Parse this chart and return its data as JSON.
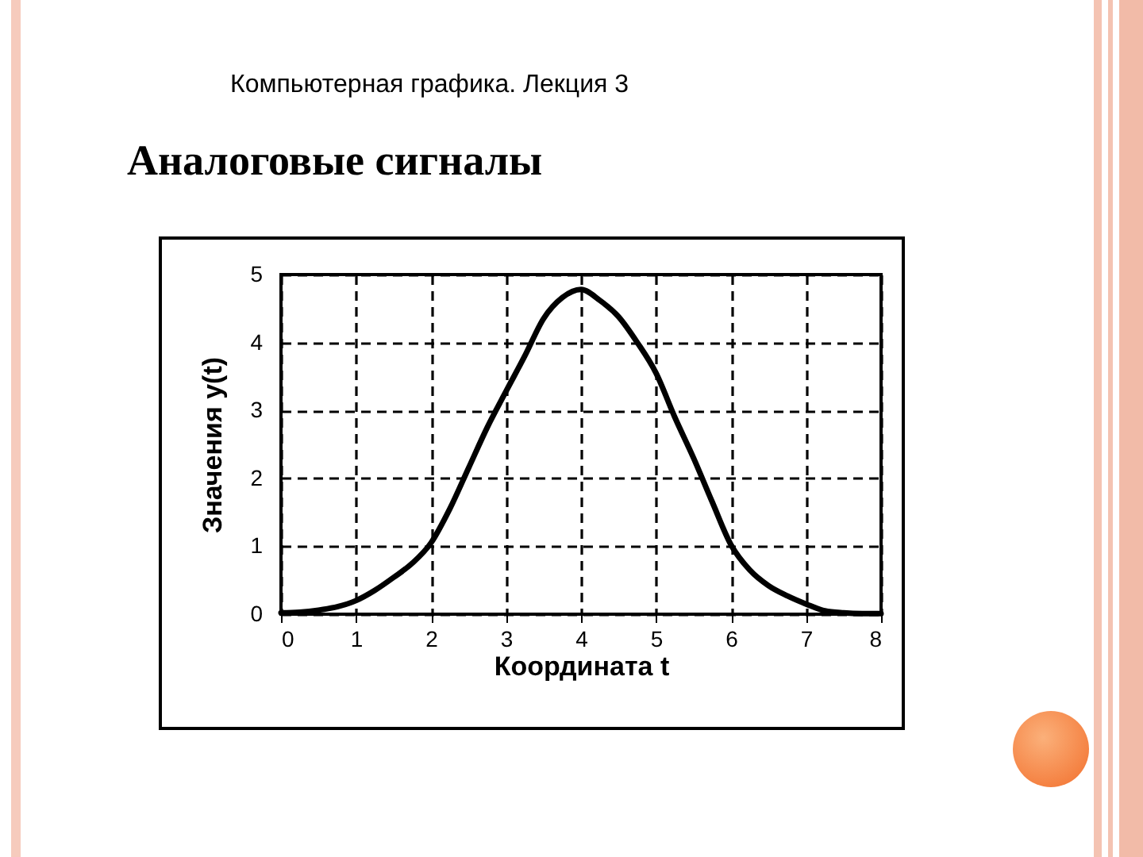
{
  "chart_data": {
    "type": "line",
    "title": "Аналоговые сигналы",
    "subtitle": "Компьютерная графика. Лекция 3",
    "xlabel": "Координата  t",
    "ylabel": "Значения  y(t)",
    "x": [
      0,
      0.25,
      0.5,
      0.75,
      1,
      1.25,
      1.5,
      1.75,
      2,
      2.25,
      2.5,
      2.75,
      3,
      3.25,
      3.5,
      3.75,
      4,
      4.25,
      4.5,
      4.75,
      5,
      5.25,
      5.5,
      5.75,
      6,
      6.25,
      6.5,
      6.75,
      7,
      7.25,
      7.5,
      7.75,
      8
    ],
    "series": [
      {
        "color": "#000000",
        "values": [
          0.02,
          0.03,
          0.06,
          0.11,
          0.2,
          0.35,
          0.54,
          0.75,
          1.05,
          1.55,
          2.15,
          2.75,
          3.28,
          3.8,
          4.35,
          4.66,
          4.78,
          4.62,
          4.38,
          4.0,
          3.55,
          2.9,
          2.3,
          1.65,
          1.02,
          0.65,
          0.42,
          0.27,
          0.15,
          0.05,
          0.02,
          0.01,
          0.01
        ]
      }
    ],
    "xlim": [
      0,
      8
    ],
    "ylim": [
      0,
      5
    ],
    "xticks": [
      0,
      1,
      2,
      3,
      4,
      5,
      6,
      7,
      8
    ],
    "yticks": [
      0,
      1,
      2,
      3,
      4,
      5
    ],
    "grid": true,
    "marker": "none",
    "line_style": "solid"
  }
}
